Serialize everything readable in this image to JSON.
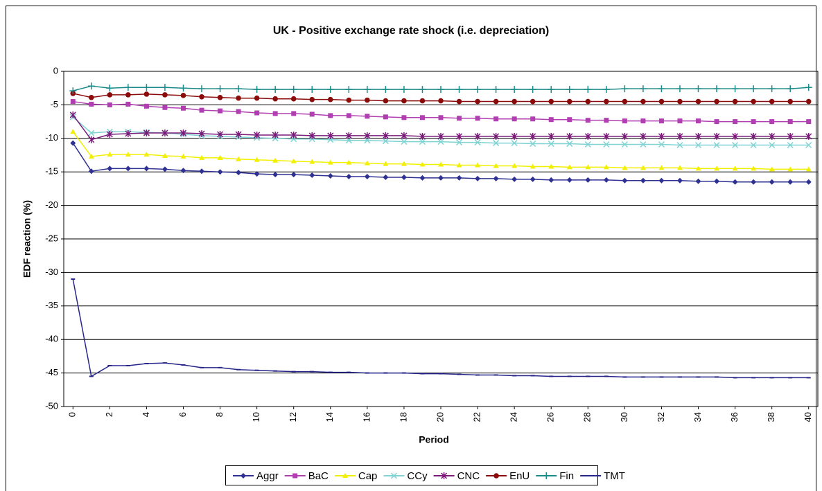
{
  "chart_data": {
    "type": "line",
    "title": "UK - Positive exchange rate shock (i.e. depreciation)",
    "x_label": "Period",
    "y_label": "EDF reaction (%)",
    "x": [
      0,
      1,
      2,
      3,
      4,
      5,
      6,
      7,
      8,
      9,
      10,
      11,
      12,
      13,
      14,
      15,
      16,
      17,
      18,
      19,
      20,
      21,
      22,
      23,
      24,
      25,
      26,
      27,
      28,
      29,
      30,
      31,
      32,
      33,
      34,
      35,
      36,
      37,
      38,
      39,
      40
    ],
    "xlim": [
      -0.5,
      40.5
    ],
    "xticks": [
      0,
      2,
      4,
      6,
      8,
      10,
      12,
      14,
      16,
      18,
      20,
      22,
      24,
      26,
      28,
      30,
      32,
      34,
      36,
      38,
      40
    ],
    "ylim": [
      -50,
      0
    ],
    "yticks": [
      0,
      -5,
      -10,
      -15,
      -20,
      -25,
      -30,
      -35,
      -40,
      -45,
      -50
    ],
    "grid": true,
    "legend": "bottom",
    "series": [
      {
        "name": "Aggr",
        "color": "#2e3192",
        "marker": "diamond",
        "values": [
          -10.7,
          -14.9,
          -14.5,
          -14.5,
          -14.5,
          -14.6,
          -14.8,
          -14.9,
          -15.0,
          -15.1,
          -15.3,
          -15.4,
          -15.4,
          -15.5,
          -15.6,
          -15.7,
          -15.7,
          -15.8,
          -15.8,
          -15.9,
          -15.9,
          -15.9,
          -16.0,
          -16.0,
          -16.1,
          -16.1,
          -16.2,
          -16.2,
          -16.2,
          -16.2,
          -16.3,
          -16.3,
          -16.3,
          -16.3,
          -16.4,
          -16.4,
          -16.5,
          -16.5,
          -16.5,
          -16.5,
          -16.5
        ]
      },
      {
        "name": "BaC",
        "color": "#b13fb1",
        "marker": "square",
        "values": [
          -4.5,
          -4.9,
          -5.0,
          -4.9,
          -5.2,
          -5.4,
          -5.5,
          -5.8,
          -5.9,
          -6.0,
          -6.2,
          -6.3,
          -6.3,
          -6.4,
          -6.6,
          -6.6,
          -6.7,
          -6.8,
          -6.9,
          -6.9,
          -6.9,
          -7.0,
          -7.0,
          -7.1,
          -7.1,
          -7.1,
          -7.2,
          -7.2,
          -7.3,
          -7.3,
          -7.4,
          -7.4,
          -7.4,
          -7.4,
          -7.4,
          -7.5,
          -7.5,
          -7.5,
          -7.5,
          -7.5,
          -7.5
        ]
      },
      {
        "name": "Cap",
        "color": "#f2f000",
        "marker": "triangle",
        "values": [
          -9.0,
          -12.7,
          -12.4,
          -12.4,
          -12.4,
          -12.6,
          -12.7,
          -12.9,
          -12.9,
          -13.1,
          -13.2,
          -13.3,
          -13.4,
          -13.5,
          -13.6,
          -13.6,
          -13.7,
          -13.8,
          -13.8,
          -13.9,
          -13.9,
          -14.0,
          -14.0,
          -14.1,
          -14.1,
          -14.2,
          -14.2,
          -14.3,
          -14.3,
          -14.3,
          -14.4,
          -14.4,
          -14.4,
          -14.4,
          -14.5,
          -14.5,
          -14.5,
          -14.5,
          -14.6,
          -14.6,
          -14.6
        ]
      },
      {
        "name": "CCy",
        "color": "#7fd3d3",
        "marker": "cross",
        "values": [
          -6.8,
          -9.2,
          -9.0,
          -9.0,
          -9.1,
          -9.2,
          -9.4,
          -9.6,
          -9.7,
          -9.8,
          -9.9,
          -10.0,
          -10.1,
          -10.1,
          -10.2,
          -10.3,
          -10.3,
          -10.4,
          -10.5,
          -10.5,
          -10.5,
          -10.6,
          -10.6,
          -10.7,
          -10.7,
          -10.8,
          -10.8,
          -10.8,
          -10.9,
          -10.9,
          -10.9,
          -10.9,
          -10.9,
          -11.0,
          -11.0,
          -11.0,
          -11.0,
          -11.0,
          -11.0,
          -11.0,
          -11.0
        ]
      },
      {
        "name": "CNC",
        "color": "#7a1a7a",
        "marker": "star",
        "values": [
          -6.5,
          -10.2,
          -9.4,
          -9.3,
          -9.2,
          -9.2,
          -9.2,
          -9.3,
          -9.4,
          -9.4,
          -9.5,
          -9.5,
          -9.5,
          -9.6,
          -9.6,
          -9.6,
          -9.6,
          -9.6,
          -9.6,
          -9.7,
          -9.7,
          -9.7,
          -9.7,
          -9.7,
          -9.7,
          -9.7,
          -9.7,
          -9.7,
          -9.7,
          -9.7,
          -9.7,
          -9.7,
          -9.7,
          -9.7,
          -9.7,
          -9.7,
          -9.7,
          -9.7,
          -9.7,
          -9.7,
          -9.7
        ]
      },
      {
        "name": "EnU",
        "color": "#8b0a0a",
        "marker": "circle",
        "values": [
          -3.3,
          -3.9,
          -3.5,
          -3.5,
          -3.4,
          -3.5,
          -3.6,
          -3.8,
          -3.9,
          -4.0,
          -4.0,
          -4.1,
          -4.1,
          -4.2,
          -4.2,
          -4.3,
          -4.3,
          -4.4,
          -4.4,
          -4.4,
          -4.4,
          -4.5,
          -4.5,
          -4.5,
          -4.5,
          -4.5,
          -4.5,
          -4.5,
          -4.5,
          -4.5,
          -4.5,
          -4.5,
          -4.5,
          -4.5,
          -4.5,
          -4.5,
          -4.5,
          -4.5,
          -4.5,
          -4.5,
          -4.5
        ]
      },
      {
        "name": "Fin",
        "color": "#1a8a8a",
        "marker": "plus",
        "values": [
          -2.9,
          -2.2,
          -2.5,
          -2.4,
          -2.4,
          -2.4,
          -2.5,
          -2.6,
          -2.6,
          -2.6,
          -2.7,
          -2.7,
          -2.7,
          -2.7,
          -2.7,
          -2.7,
          -2.7,
          -2.7,
          -2.7,
          -2.7,
          -2.7,
          -2.7,
          -2.7,
          -2.7,
          -2.7,
          -2.7,
          -2.7,
          -2.7,
          -2.7,
          -2.7,
          -2.6,
          -2.6,
          -2.6,
          -2.6,
          -2.6,
          -2.6,
          -2.6,
          -2.6,
          -2.6,
          -2.6,
          -2.4
        ]
      },
      {
        "name": "TMT",
        "color": "#26268a",
        "marker": "dash",
        "values": [
          -31.0,
          -45.5,
          -43.9,
          -43.9,
          -43.6,
          -43.5,
          -43.8,
          -44.2,
          -44.2,
          -44.5,
          -44.6,
          -44.7,
          -44.8,
          -44.8,
          -44.9,
          -44.9,
          -45.0,
          -45.0,
          -45.0,
          -45.1,
          -45.1,
          -45.2,
          -45.3,
          -45.3,
          -45.4,
          -45.4,
          -45.5,
          -45.5,
          -45.5,
          -45.5,
          -45.6,
          -45.6,
          -45.6,
          -45.6,
          -45.6,
          -45.6,
          -45.7,
          -45.7,
          -45.7,
          -45.7,
          -45.7
        ]
      }
    ]
  }
}
